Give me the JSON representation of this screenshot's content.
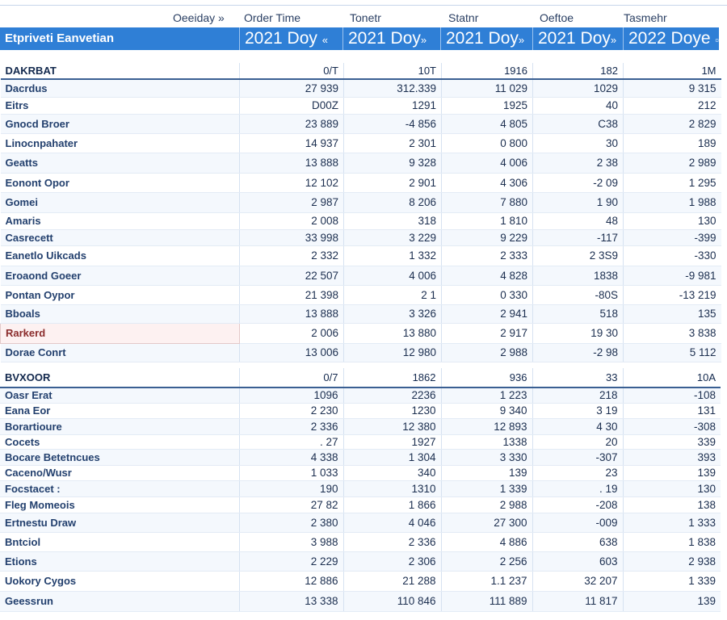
{
  "header": {
    "columns": [
      "Oeeiday »",
      "Order Time",
      "Tonetr",
      "Statnr",
      "Oeftoe",
      "Tasmehr"
    ],
    "band_label": "Etpriveti Eanvetian",
    "days": [
      "2021 Doy",
      "2021 Doy",
      "2021 Doy",
      "2021 Doy",
      "2022 Doye"
    ],
    "day_icons": [
      "«",
      "»",
      "»",
      "»",
      "▫"
    ]
  },
  "sections": [
    {
      "title": "DAKRBAT",
      "totals": [
        "0/T",
        "10T",
        "1916",
        "182",
        "1M"
      ],
      "rows": [
        {
          "name": "Dacrdus",
          "values": [
            "27 939",
            "312.339",
            "11 029",
            "1029",
            "9 315"
          ]
        },
        {
          "name": "Eitrs",
          "values": [
            "D00Z",
            "1291",
            "1925",
            "40",
            "212"
          ]
        },
        {
          "name": "Gnocd Broer",
          "values": [
            "23 889",
            "-4 856",
            "4 805",
            "C38",
            "2 829"
          ]
        },
        {
          "name": "Linocnpahater",
          "values": [
            "14 937",
            "2 301",
            "0 800",
            "30",
            "189"
          ]
        },
        {
          "name": "Geatts",
          "values": [
            "13 888",
            "9 328",
            "4 006",
            "2 38",
            "2 989"
          ]
        },
        {
          "name": "Eonont Opor",
          "values": [
            "12 102",
            "2 901",
            "4 306",
            "-2 09",
            "1 295"
          ]
        },
        {
          "name": "Gomei",
          "values": [
            "2 987",
            "8 206",
            "7 880",
            "1 90",
            "1 988"
          ]
        },
        {
          "name": "Amaris",
          "values": [
            "2 008",
            "318",
            "1 810",
            "48",
            "130"
          ]
        },
        {
          "name": "Casrecett",
          "values": [
            "33 998",
            "3 229",
            "9 229",
            "-117",
            "-399"
          ]
        },
        {
          "name": "Eanetlo Uikcads",
          "values": [
            "2 332",
            "1 332",
            "2 333",
            "2 3S9",
            "-330"
          ]
        },
        {
          "name": "Eroaond Goeer",
          "values": [
            "22 507",
            "4 006",
            "4 828",
            "1838",
            "-9 981"
          ]
        },
        {
          "name": "Pontan Oypor",
          "values": [
            "21 398",
            "2 1",
            "0 330",
            "-80S",
            "-13 219"
          ]
        },
        {
          "name": "Bboals",
          "values": [
            "13 888",
            "3 326",
            "2 941",
            "518",
            "135"
          ]
        },
        {
          "name": "Rarkerd",
          "values": [
            "2 006",
            "13 880",
            "2 917",
            "19 30",
            "3 838"
          ]
        },
        {
          "name": "Dorae Conrt",
          "values": [
            "13 006",
            "12 980",
            "2 988",
            "-2 98",
            "5 112"
          ]
        }
      ]
    },
    {
      "title": "BVXOOR",
      "totals": [
        "0/7",
        "1862",
        "936",
        "33",
        "10A"
      ],
      "rows": [
        {
          "name": "Oasr Erat",
          "values": [
            "1096",
            "2236",
            "1 223",
            "218",
            "-108"
          ]
        },
        {
          "name": "Eana Eor",
          "values": [
            "2 230",
            "1230",
            "9 340",
            "3 19",
            "131"
          ]
        },
        {
          "name": "Borartioure",
          "values": [
            "2 336",
            "12 380",
            "12 893",
            "4 30",
            "-308"
          ]
        },
        {
          "name": "Cocets",
          "values": [
            ". 27",
            "1927",
            "1338",
            "20",
            "339"
          ]
        },
        {
          "name": "Bocare Betetncues",
          "values": [
            "4 338",
            "1 304",
            "3 330",
            "-307",
            "393"
          ]
        },
        {
          "name": "Caceno/Wusr",
          "values": [
            "1 033",
            "340",
            "139",
            "23",
            "139"
          ]
        },
        {
          "name": "Focstacet :",
          "values": [
            "190",
            "1310",
            "1 339",
            ". 19",
            "130"
          ]
        },
        {
          "name": "Fleg Momeois",
          "values": [
            "27 82",
            "1 866",
            "2 988",
            "-208",
            "138"
          ]
        },
        {
          "name": "Ertnestu Draw",
          "values": [
            "2 380",
            "4 046",
            "27 300",
            "-009",
            "1 333"
          ]
        },
        {
          "name": "Bntciol",
          "values": [
            "3 988",
            "2 336",
            "4 886",
            "638",
            "1 838"
          ]
        },
        {
          "name": "Etions",
          "values": [
            "2 229",
            "2 306",
            "2 256",
            "603",
            "2 938"
          ]
        },
        {
          "name": "Uokory Cygos",
          "values": [
            "12 886",
            "21 288",
            "1.1 237",
            "32 207",
            "1 339"
          ]
        },
        {
          "name": "Geessrun",
          "values": [
            "13 338",
            "110 846",
            "111 889",
            "11 817",
            "139"
          ]
        }
      ]
    }
  ]
}
